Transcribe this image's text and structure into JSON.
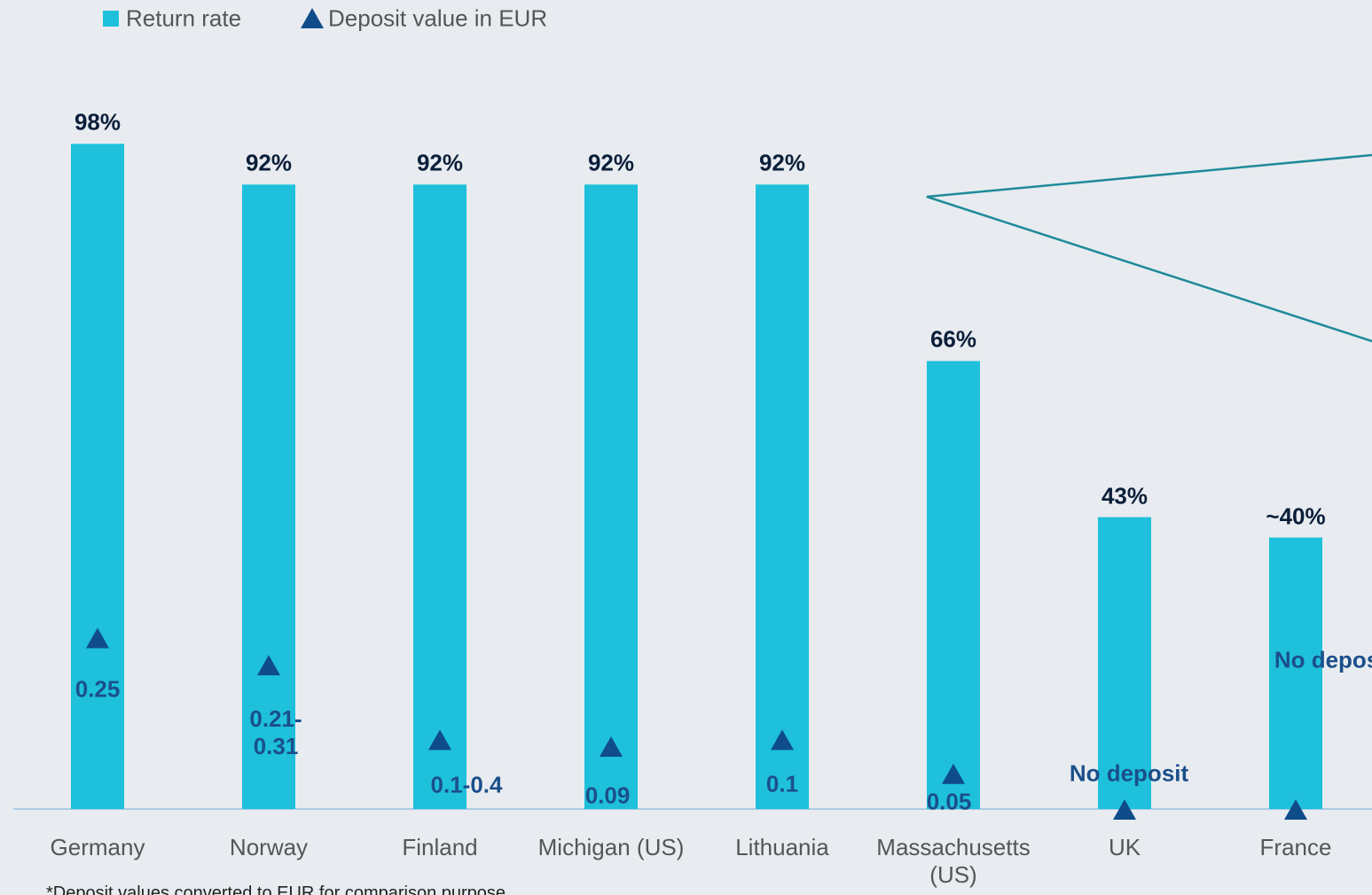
{
  "chart_data": {
    "type": "bar",
    "categories": [
      "Germany",
      "Norway",
      "Finland",
      "Michigan (US)",
      "Lithuania",
      "Massachusetts (US)",
      "UK",
      "France"
    ],
    "series": [
      {
        "name": "Return rate",
        "color": "#1ec0dc",
        "values": [
          98,
          92,
          92,
          92,
          92,
          66,
          43,
          40
        ],
        "value_labels": [
          "98%",
          "92%",
          "92%",
          "92%",
          "92%",
          "66%",
          "43%",
          "~40%"
        ]
      },
      {
        "name": "Deposit value in EUR",
        "color": "#0f4c8a",
        "axis": "y2",
        "marker": "triangle",
        "values": [
          0.25,
          0.21,
          0.1,
          0.09,
          0.1,
          0.05,
          0,
          0
        ],
        "value_labels": [
          "0.25",
          "0.21-0.31",
          "0.1-0.4",
          "0.09",
          "0.1",
          "0.05",
          "No deposit",
          "No deposit"
        ]
      }
    ],
    "ylim": [
      0,
      100
    ],
    "y2lim": [
      0,
      1
    ],
    "legend": "top-left",
    "footnote": "*Deposit values converted to EUR for comparison purpose"
  }
}
